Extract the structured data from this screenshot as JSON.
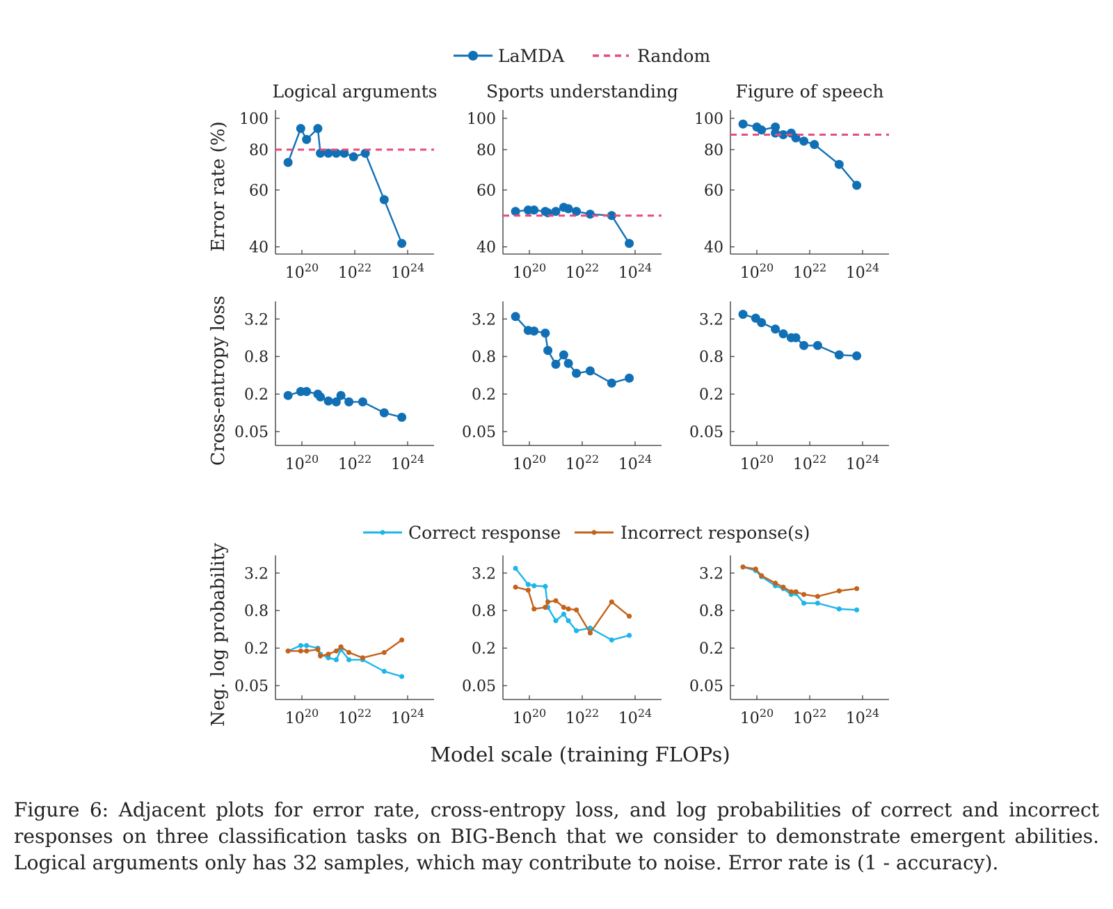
{
  "legend_top": {
    "items": [
      {
        "label": "LaMDA",
        "color": "#1170b5",
        "style": "solid-marker"
      },
      {
        "label": "Random",
        "color": "#e44c82",
        "style": "dashed"
      }
    ]
  },
  "legend_bottom": {
    "items": [
      {
        "label": "Correct response",
        "color": "#1cb6ea",
        "style": "solid-dot"
      },
      {
        "label": "Incorrect response(s)",
        "color": "#c3621a",
        "style": "solid-dot"
      }
    ]
  },
  "row_labels": [
    "Error rate (%)",
    "Cross-entropy loss",
    "Neg. log probability"
  ],
  "column_titles": [
    "Logical arguments",
    "Sports understanding",
    "Figure of speech"
  ],
  "xlabel": "Model scale (training FLOPs)",
  "x_ticks": [
    "10^20",
    "10^22",
    "10^24"
  ],
  "caption": "Figure 6: Adjacent plots for error rate, cross-entropy loss, and log probabilities of correct and incorrect responses on three classification tasks on BIG-Bench that we consider to demonstrate emergent abilities. Logical arguments only has 32 samples, which may contribute to noise. Error rate is (1 - accuracy).",
  "chart_data": [
    {
      "type": "line",
      "title": "Logical arguments",
      "ylabel": "Error rate (%)",
      "xlabel": "",
      "xscale": "log",
      "yscale": "log",
      "xlim": [
        1e+19,
        1e+25
      ],
      "ylim": [
        38,
        100
      ],
      "yticks": [
        "40",
        "60",
        "80",
        "100"
      ],
      "series": [
        {
          "name": "LaMDA",
          "color": "#1170b5",
          "x": [
            3e+19,
            9e+19,
            1.5e+20,
            4e+20,
            5e+20,
            1e+21,
            2e+21,
            4e+21,
            9e+21,
            2.5e+22,
            1.3e+23,
            6e+23
          ],
          "y": [
            73,
            93,
            86,
            93,
            78,
            78,
            78,
            78,
            76,
            78,
            56,
            41
          ]
        },
        {
          "name": "Random",
          "color": "#e44c82",
          "dashed": true,
          "x": [
            1e+19,
            1e+25
          ],
          "y": [
            80,
            80
          ]
        }
      ]
    },
    {
      "type": "line",
      "title": "Sports understanding",
      "ylabel": "",
      "xlabel": "",
      "xscale": "log",
      "yscale": "log",
      "xlim": [
        1e+19,
        1e+25
      ],
      "ylim": [
        38,
        100
      ],
      "yticks": [
        "40",
        "60",
        "80",
        "100"
      ],
      "series": [
        {
          "name": "LaMDA",
          "color": "#1170b5",
          "x": [
            3e+19,
            9e+19,
            1.5e+20,
            4e+20,
            5e+20,
            1e+21,
            2e+21,
            3e+21,
            6e+21,
            2e+22,
            1.3e+23,
            6e+23
          ],
          "y": [
            51.5,
            52,
            52,
            51.5,
            51,
            51.5,
            53,
            52.5,
            51.5,
            50.5,
            50,
            41
          ]
        },
        {
          "name": "Random",
          "color": "#e44c82",
          "dashed": true,
          "x": [
            1e+19,
            1e+25
          ],
          "y": [
            50,
            50
          ]
        }
      ]
    },
    {
      "type": "line",
      "title": "Figure of speech",
      "ylabel": "",
      "xlabel": "",
      "xscale": "log",
      "yscale": "log",
      "xlim": [
        1e+19,
        1e+25
      ],
      "ylim": [
        38,
        100
      ],
      "yticks": [
        "40",
        "60",
        "80",
        "100"
      ],
      "series": [
        {
          "name": "LaMDA",
          "color": "#1170b5",
          "x": [
            3e+19,
            1e+20,
            1.5e+20,
            5e+20,
            5e+20,
            1e+21,
            2e+21,
            3e+21,
            6e+21,
            1.5e+22,
            1.3e+23,
            6e+23
          ],
          "y": [
            96,
            94,
            92,
            94,
            90,
            89,
            90,
            87,
            85,
            83,
            72,
            62
          ]
        },
        {
          "name": "Random",
          "color": "#e44c82",
          "dashed": true,
          "x": [
            1e+19,
            1e+25
          ],
          "y": [
            89,
            89
          ]
        }
      ]
    },
    {
      "type": "line",
      "title": "",
      "ylabel": "Cross-entropy loss",
      "xlabel": "",
      "xscale": "log",
      "yscale": "log",
      "xlim": [
        1e+19,
        1e+25
      ],
      "ylim": [
        0.03,
        4.5
      ],
      "yticks": [
        "0.05",
        "0.2",
        "0.8",
        "3.2"
      ],
      "series": [
        {
          "name": "LaMDA",
          "color": "#1170b5",
          "x": [
            3e+19,
            9e+19,
            1.5e+20,
            4e+20,
            5e+20,
            1e+21,
            2e+21,
            3e+21,
            6e+21,
            2e+22,
            1.3e+23,
            6e+23
          ],
          "y": [
            0.19,
            0.22,
            0.22,
            0.2,
            0.18,
            0.155,
            0.15,
            0.19,
            0.15,
            0.15,
            0.1,
            0.085
          ]
        }
      ]
    },
    {
      "type": "line",
      "title": "",
      "ylabel": "",
      "xlabel": "",
      "xscale": "log",
      "yscale": "log",
      "xlim": [
        1e+19,
        1e+25
      ],
      "ylim": [
        0.03,
        4.5
      ],
      "yticks": [
        "0.05",
        "0.2",
        "0.8",
        "3.2"
      ],
      "series": [
        {
          "name": "LaMDA",
          "color": "#1170b5",
          "x": [
            3e+19,
            9e+19,
            1.5e+20,
            4e+20,
            5e+20,
            1e+21,
            2e+21,
            3e+21,
            6e+21,
            2e+22,
            1.3e+23,
            6e+23
          ],
          "y": [
            3.5,
            2.1,
            2.05,
            1.9,
            1.0,
            0.6,
            0.85,
            0.62,
            0.43,
            0.47,
            0.3,
            0.36
          ]
        }
      ]
    },
    {
      "type": "line",
      "title": "",
      "ylabel": "",
      "xlabel": "",
      "xscale": "log",
      "yscale": "log",
      "xlim": [
        1e+19,
        1e+25
      ],
      "ylim": [
        0.03,
        4.5
      ],
      "yticks": [
        "0.05",
        "0.2",
        "0.8",
        "3.2"
      ],
      "series": [
        {
          "name": "LaMDA",
          "color": "#1170b5",
          "x": [
            3e+19,
            9e+19,
            1.5e+20,
            5e+20,
            1e+21,
            2e+21,
            3e+21,
            6e+21,
            2e+22,
            1.3e+23,
            6e+23
          ],
          "y": [
            3.8,
            3.3,
            2.8,
            2.2,
            1.85,
            1.6,
            1.6,
            1.2,
            1.2,
            0.85,
            0.82
          ]
        }
      ]
    },
    {
      "type": "line",
      "title": "",
      "ylabel": "Neg. log probability",
      "xlabel": "",
      "xscale": "log",
      "yscale": "log",
      "xlim": [
        1e+19,
        1e+25
      ],
      "ylim": [
        0.03,
        4.5
      ],
      "yticks": [
        "0.05",
        "0.2",
        "0.8",
        "3.2"
      ],
      "series": [
        {
          "name": "Correct response",
          "color": "#1cb6ea",
          "x": [
            3e+19,
            9e+19,
            1.5e+20,
            4e+20,
            5e+20,
            1e+21,
            2e+21,
            3e+21,
            6e+21,
            2e+22,
            1.3e+23,
            6e+23
          ],
          "y": [
            0.18,
            0.22,
            0.22,
            0.2,
            0.16,
            0.14,
            0.13,
            0.19,
            0.13,
            0.13,
            0.085,
            0.07
          ]
        },
        {
          "name": "Incorrect response(s)",
          "color": "#c3621a",
          "x": [
            3e+19,
            9e+19,
            1.5e+20,
            4e+20,
            5e+20,
            1e+21,
            2e+21,
            3e+21,
            6e+21,
            2e+22,
            1.3e+23,
            6e+23
          ],
          "y": [
            0.18,
            0.18,
            0.18,
            0.19,
            0.15,
            0.16,
            0.18,
            0.21,
            0.17,
            0.14,
            0.17,
            0.27
          ]
        }
      ]
    },
    {
      "type": "line",
      "title": "",
      "ylabel": "",
      "xlabel": "",
      "xscale": "log",
      "yscale": "log",
      "xlim": [
        1e+19,
        1e+25
      ],
      "ylim": [
        0.03,
        4.5
      ],
      "yticks": [
        "0.05",
        "0.2",
        "0.8",
        "3.2"
      ],
      "series": [
        {
          "name": "Correct response",
          "color": "#1cb6ea",
          "x": [
            3e+19,
            9e+19,
            1.5e+20,
            4e+20,
            5e+20,
            1e+21,
            2e+21,
            3e+21,
            6e+21,
            2e+22,
            1.3e+23,
            6e+23
          ],
          "y": [
            3.8,
            2.1,
            2.0,
            1.95,
            0.9,
            0.55,
            0.7,
            0.55,
            0.38,
            0.42,
            0.27,
            0.32
          ]
        },
        {
          "name": "Incorrect response(s)",
          "color": "#c3621a",
          "x": [
            3e+19,
            9e+19,
            1.5e+20,
            4e+20,
            5e+20,
            1e+21,
            2e+21,
            3e+21,
            6e+21,
            2e+22,
            1.3e+23,
            6e+23
          ],
          "y": [
            1.9,
            1.7,
            0.85,
            0.9,
            1.1,
            1.15,
            0.9,
            0.85,
            0.82,
            0.35,
            1.1,
            0.65
          ]
        }
      ]
    },
    {
      "type": "line",
      "title": "",
      "ylabel": "",
      "xlabel": "",
      "xscale": "log",
      "yscale": "log",
      "xlim": [
        1e+19,
        1e+25
      ],
      "ylim": [
        0.03,
        4.5
      ],
      "yticks": [
        "0.05",
        "0.2",
        "0.8",
        "3.2"
      ],
      "series": [
        {
          "name": "Correct response",
          "color": "#1cb6ea",
          "x": [
            3e+19,
            9e+19,
            1.5e+20,
            5e+20,
            1e+21,
            2e+21,
            3e+21,
            6e+21,
            2e+22,
            1.3e+23,
            6e+23
          ],
          "y": [
            4.0,
            3.5,
            2.8,
            2.0,
            1.8,
            1.45,
            1.5,
            1.05,
            1.05,
            0.85,
            0.82
          ]
        },
        {
          "name": "Incorrect response(s)",
          "color": "#c3621a",
          "x": [
            3e+19,
            9e+19,
            1.5e+20,
            5e+20,
            1e+21,
            2e+21,
            3e+21,
            6e+21,
            2e+22,
            1.3e+23,
            6e+23
          ],
          "y": [
            4.0,
            3.7,
            2.9,
            2.2,
            1.9,
            1.6,
            1.6,
            1.45,
            1.35,
            1.65,
            1.8
          ]
        }
      ]
    }
  ]
}
